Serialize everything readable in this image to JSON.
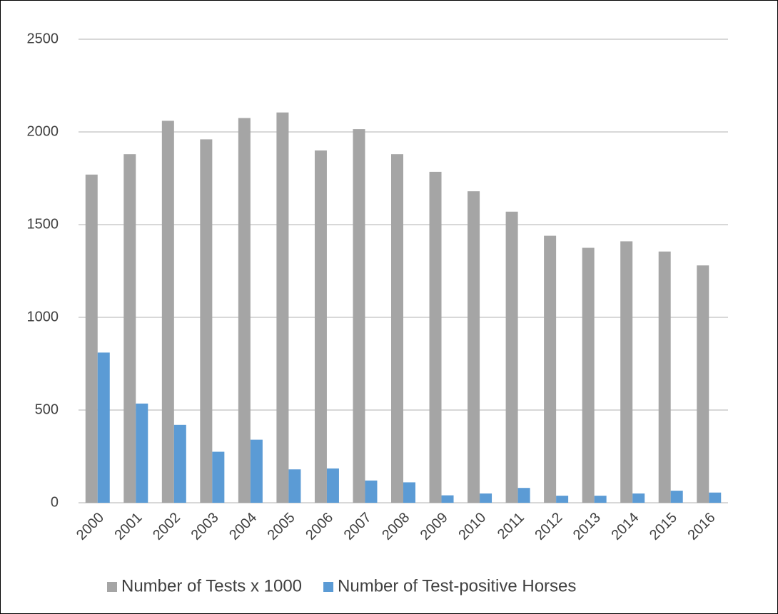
{
  "chart_data": {
    "type": "bar",
    "categories": [
      "2000",
      "2001",
      "2002",
      "2003",
      "2004",
      "2005",
      "2006",
      "2007",
      "2008",
      "2009",
      "2010",
      "2011",
      "2012",
      "2013",
      "2014",
      "2015",
      "2016"
    ],
    "series": [
      {
        "name": "Number of Tests x 1000",
        "color": "#a5a5a5",
        "values": [
          1770,
          1880,
          2060,
          1960,
          2075,
          2105,
          1900,
          2015,
          1880,
          1785,
          1680,
          1570,
          1440,
          1375,
          1410,
          1355,
          1280
        ]
      },
      {
        "name": "Number of Test-positive Horses",
        "color": "#5b9bd5",
        "values": [
          810,
          535,
          420,
          275,
          340,
          180,
          185,
          120,
          110,
          40,
          50,
          80,
          38,
          38,
          50,
          65,
          55
        ]
      }
    ],
    "ylim": [
      0,
      2500
    ],
    "yticks": [
      0,
      500,
      1000,
      1500,
      2000,
      2500
    ],
    "grid": true,
    "legend": "bottom"
  }
}
